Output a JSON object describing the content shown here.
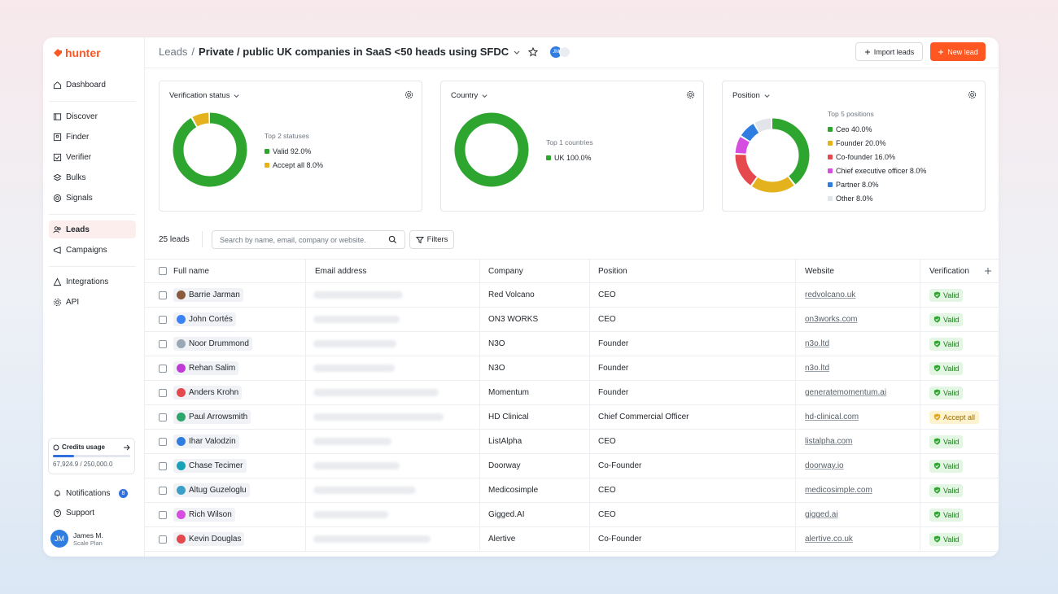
{
  "brand": {
    "name": "hunter"
  },
  "sidebar": {
    "items": [
      {
        "label": "Dashboard"
      },
      {
        "label": "Discover"
      },
      {
        "label": "Finder"
      },
      {
        "label": "Verifier"
      },
      {
        "label": "Bulks"
      },
      {
        "label": "Signals"
      },
      {
        "label": "Leads"
      },
      {
        "label": "Campaigns"
      },
      {
        "label": "Integrations"
      },
      {
        "label": "API"
      }
    ],
    "credits": {
      "title": "Credits usage",
      "value": "67,924.9 / 250,000.0",
      "fraction": 0.272
    },
    "notifications": {
      "label": "Notifications",
      "count": "8"
    },
    "support": {
      "label": "Support"
    },
    "user": {
      "initials": "JM",
      "name": "James M.",
      "plan": "Scale Plan"
    }
  },
  "header": {
    "breadcrumb_root": "Leads",
    "breadcrumb_sep": "/",
    "list_title": "Private / public UK companies in SaaS <50 heads using SFDC",
    "avatar_initials": "JM",
    "import_label": "Import leads",
    "new_label": "New lead"
  },
  "widgets": [
    {
      "title": "Verification status",
      "subtitle": "Top 2 statuses",
      "items": [
        {
          "label": "Valid 92.0%",
          "value": 92,
          "color": "#2ea52e"
        },
        {
          "label": "Accept all 8.0%",
          "value": 8,
          "color": "#e3b21d"
        }
      ]
    },
    {
      "title": "Country",
      "subtitle": "Top 1 countries",
      "items": [
        {
          "label": "UK 100.0%",
          "value": 100,
          "color": "#2ea52e"
        }
      ]
    },
    {
      "title": "Position",
      "subtitle": "Top 5 positions",
      "items": [
        {
          "label": "Ceo 40.0%",
          "value": 40,
          "color": "#2ea52e"
        },
        {
          "label": "Founder 20.0%",
          "value": 20,
          "color": "#e3b21d"
        },
        {
          "label": "Co-founder 16.0%",
          "value": 16,
          "color": "#e5484d"
        },
        {
          "label": "Chief executive officer 8.0%",
          "value": 8,
          "color": "#d64ee0"
        },
        {
          "label": "Partner 8.0%",
          "value": 8,
          "color": "#2f7de0"
        },
        {
          "label": "Other 8.0%",
          "value": 8,
          "color": "#e1e4e8"
        }
      ]
    }
  ],
  "toolbar": {
    "count": "25 leads",
    "search_placeholder": "Search by name, email, company or website.",
    "filters_label": "Filters"
  },
  "table": {
    "headers": {
      "name": "Full name",
      "email": "Email address",
      "company": "Company",
      "position": "Position",
      "website": "Website",
      "verification": "Verification"
    },
    "rows": [
      {
        "name": "Barrie Jarman",
        "company": "Red Volcano",
        "position": "CEO",
        "website": "redvolcano.uk",
        "status": "Valid",
        "avatar_color": "#8a5a3c"
      },
      {
        "name": "John Cortés",
        "company": "ON3 WORKS",
        "position": "CEO",
        "website": "on3works.com",
        "status": "Valid",
        "avatar_color": "#3b82f6"
      },
      {
        "name": "Noor Drummond",
        "company": "N3O",
        "position": "Founder",
        "website": "n3o.ltd",
        "status": "Valid",
        "avatar_color": "#9aa7b5"
      },
      {
        "name": "Rehan Salim",
        "company": "N3O",
        "position": "Founder",
        "website": "n3o.ltd",
        "status": "Valid",
        "avatar_color": "#c03bd6"
      },
      {
        "name": "Anders Krohn",
        "company": "Momentum",
        "position": "Founder",
        "website": "generatemomentum.ai",
        "status": "Valid",
        "avatar_color": "#e5484d"
      },
      {
        "name": "Paul Arrowsmith",
        "company": "HD Clinical",
        "position": "Chief Commercial Officer",
        "website": "hd-clinical.com",
        "status": "Accept all",
        "avatar_color": "#2ea56a"
      },
      {
        "name": "Ihar Valodzin",
        "company": "ListAlpha",
        "position": "CEO",
        "website": "listalpha.com",
        "status": "Valid",
        "avatar_color": "#2f7de0"
      },
      {
        "name": "Chase Tecimer",
        "company": "Doorway",
        "position": "Co-Founder",
        "website": "doorway.io",
        "status": "Valid",
        "avatar_color": "#17a2b8"
      },
      {
        "name": "Altug Guzeloglu",
        "company": "Medicosimple",
        "position": "CEO",
        "website": "medicosimple.com",
        "status": "Valid",
        "avatar_color": "#3aa0c8"
      },
      {
        "name": "Rich Wilson",
        "company": "Gigged.AI",
        "position": "CEO",
        "website": "gigged.ai",
        "status": "Valid",
        "avatar_color": "#d64ee0"
      },
      {
        "name": "Kevin Douglas",
        "company": "Alertive",
        "position": "Co-Founder",
        "website": "alertive.co.uk",
        "status": "Valid",
        "avatar_color": "#e5484d"
      }
    ]
  },
  "icons": [
    "hunter-logo-icon",
    "home-icon",
    "discover-icon",
    "finder-icon",
    "verifier-icon",
    "bulks-icon",
    "signals-icon",
    "leads-icon",
    "campaigns-icon",
    "integrations-icon",
    "api-icon",
    "bell-icon",
    "help-icon",
    "chevron-down-icon",
    "star-icon",
    "gear-icon",
    "search-icon",
    "filter-icon",
    "plus-icon",
    "arrow-right-icon",
    "shield-check-icon",
    "chat-icon"
  ]
}
